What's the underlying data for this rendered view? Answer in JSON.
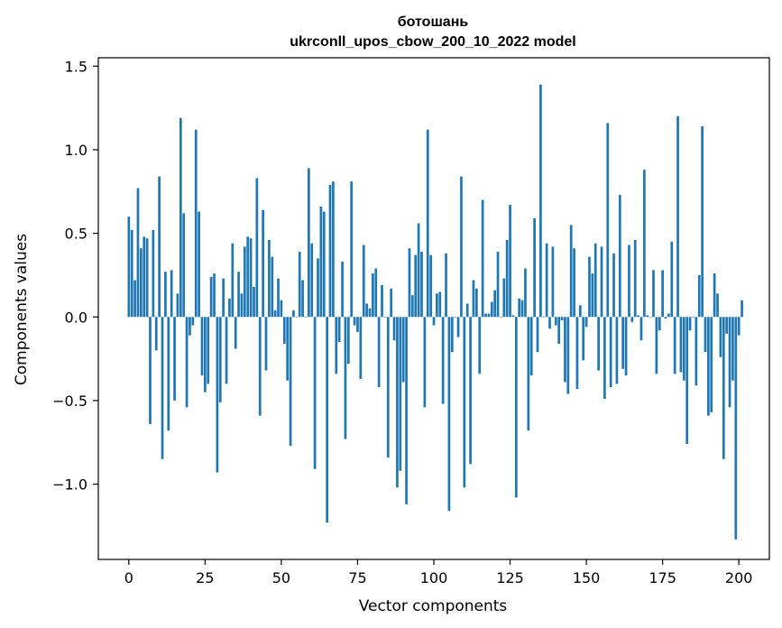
{
  "chart_data": {
    "type": "bar",
    "title_line1": "ботошань",
    "title_line2": "ukrconll_upos_cbow_200_10_2022 model",
    "xlabel": "Vector components",
    "ylabel": "Components values",
    "xlim": [
      -10,
      210
    ],
    "ylim": [
      -1.45,
      1.55
    ],
    "x_ticks": [
      0,
      25,
      50,
      75,
      100,
      125,
      150,
      175,
      200
    ],
    "x_tick_labels": [
      "0",
      "25",
      "50",
      "75",
      "100",
      "125",
      "150",
      "175",
      "200"
    ],
    "y_ticks": [
      -1.0,
      -0.5,
      0.0,
      0.5,
      1.0,
      1.5
    ],
    "y_tick_labels": [
      "−1.0",
      "−0.5",
      "0.0",
      "0.5",
      "1.0",
      "1.5"
    ],
    "bar_color": "#1f77b4",
    "grid": false,
    "values": [
      0.6,
      0.52,
      0.22,
      0.77,
      0.41,
      0.48,
      0.47,
      -0.64,
      0.52,
      -0.2,
      0.84,
      -0.85,
      0.27,
      -0.68,
      0.28,
      -0.5,
      0.14,
      1.19,
      0.62,
      -0.54,
      -0.11,
      -0.05,
      1.12,
      0.63,
      -0.35,
      -0.45,
      -0.4,
      0.24,
      0.26,
      -0.93,
      -0.51,
      0.23,
      -0.4,
      0.11,
      0.44,
      -0.19,
      0.27,
      0.14,
      0.42,
      0.48,
      0.47,
      0.18,
      0.83,
      -0.59,
      0.64,
      -0.32,
      0.46,
      0.36,
      0.04,
      0.23,
      0.1,
      -0.16,
      -0.38,
      -0.77,
      0.04,
      0.0,
      0.39,
      0.22,
      0.0,
      0.89,
      0.44,
      -0.91,
      0.35,
      0.66,
      0.63,
      -1.23,
      0.79,
      0.81,
      -0.34,
      -0.15,
      0.33,
      -0.73,
      -0.28,
      0.81,
      -0.05,
      -0.09,
      -0.37,
      0.43,
      0.08,
      0.05,
      0.26,
      0.29,
      -0.42,
      0.19,
      0.0,
      -0.84,
      0.17,
      -0.14,
      -1.02,
      -0.92,
      -0.39,
      -1.12,
      0.41,
      0.13,
      0.37,
      0.56,
      0.39,
      -0.54,
      1.12,
      0.37,
      -0.05,
      0.14,
      0.15,
      -0.52,
      0.38,
      -1.16,
      -0.21,
      0.0,
      -0.12,
      0.84,
      -1.02,
      0.08,
      -0.88,
      0.22,
      0.17,
      -0.34,
      0.7,
      0.02,
      0.02,
      0.09,
      0.16,
      0.39,
      0.0,
      0.23,
      0.46,
      0.67,
      0.01,
      -1.08,
      0.11,
      0.1,
      0.29,
      -0.68,
      -0.35,
      0.59,
      -0.21,
      1.39,
      0.0,
      0.44,
      -0.07,
      0.42,
      -0.05,
      -0.16,
      -0.02,
      -0.39,
      -0.46,
      0.55,
      0.41,
      -0.43,
      0.07,
      -0.26,
      -0.06,
      0.36,
      0.26,
      0.44,
      -0.32,
      0.42,
      -0.49,
      1.16,
      -0.42,
      0.38,
      -0.4,
      0.73,
      -0.31,
      -0.35,
      0.43,
      -0.03,
      0.46,
      0.01,
      -0.14,
      0.88,
      0.01,
      0.0,
      0.28,
      -0.34,
      -0.08,
      0.28,
      -0.01,
      0.02,
      0.45,
      -0.34,
      1.2,
      -0.33,
      -0.38,
      -0.76,
      -0.08,
      0.0,
      -0.41,
      0.25,
      1.14,
      -0.21,
      -0.59,
      -0.57,
      0.26,
      0.14,
      -0.24,
      -0.85,
      -0.1,
      -0.54,
      -0.38,
      -1.33,
      -0.11,
      0.1
    ]
  }
}
